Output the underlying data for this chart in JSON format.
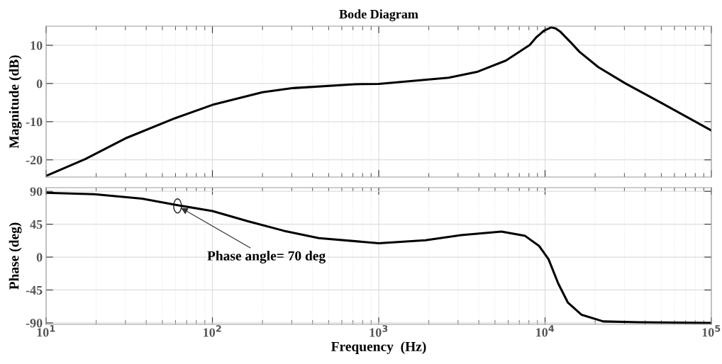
{
  "chart_data": [
    {
      "type": "line",
      "title": "Bode Diagram",
      "ylabel": "Magnitude (dB)",
      "log": "x",
      "grid": true,
      "tick_labels": "y",
      "marker": "none",
      "line_style": "solid",
      "xlim": [
        10,
        100000
      ],
      "xticks": [
        {
          "value": 10,
          "label": null
        },
        {
          "value": 100,
          "label": null
        },
        {
          "value": 1000,
          "label": null
        },
        {
          "value": 10000,
          "label": null
        },
        {
          "value": 100000,
          "label": null
        }
      ],
      "ylim": [
        -24.5,
        15
      ],
      "yticks": [
        -20,
        -10,
        0,
        10
      ],
      "series": [
        {
          "color": "#000000",
          "x": [
            10,
            17.2,
            29.9,
            59.6,
            100,
            200,
            306,
            718,
            1000,
            2630,
            3940,
            5820,
            8090,
            8910,
            9840,
            10900,
            11600,
            12400,
            14100,
            16100,
            20900,
            30200,
            50100,
            100000
          ],
          "values": [
            -24.2,
            -19.8,
            -14.4,
            -9.1,
            -5.6,
            -2.3,
            -1.2,
            -0.2,
            -0.1,
            1.5,
            3.1,
            6.0,
            10.1,
            12.2,
            13.8,
            14.7,
            14.4,
            13.5,
            11.0,
            8.3,
            4.3,
            0.1,
            -5.1,
            -12.3
          ]
        }
      ]
    },
    {
      "type": "line",
      "ylabel": "Phase (deg)",
      "xlabel": "Frequency  (Hz)",
      "log": "x",
      "grid": true,
      "marker": "none",
      "line_style": "solid",
      "xlim": [
        10,
        100000
      ],
      "xticks": [
        {
          "value": 10,
          "label": "10$^{1}$"
        },
        {
          "value": 100,
          "label": "10$^{2}$"
        },
        {
          "value": 1000,
          "label": "10$^{3}$"
        },
        {
          "value": 10000,
          "label": "10$^{4}$"
        },
        {
          "value": 100000,
          "label": "10$^{5}$"
        }
      ],
      "ylim": [
        -92,
        95
      ],
      "yticks": [
        -90,
        -45,
        0,
        45,
        90
      ],
      "annotations": [
        {
          "text": "Phase angle= 70 deg",
          "x": 61.7,
          "y": 70
        }
      ],
      "series": [
        {
          "color": "#000000",
          "x": [
            10,
            19.5,
            37.7,
            61.7,
            100,
            164,
            269,
            437,
            1000,
            1910,
            3130,
            5470,
            7590,
            9230,
            10500,
            12000,
            13700,
            16600,
            22400,
            36300,
            100000
          ],
          "values": [
            88,
            86,
            80,
            71,
            63,
            49,
            36,
            26,
            19,
            23,
            30,
            35,
            29,
            15,
            -3,
            -36,
            -62,
            -79,
            -88,
            -89,
            -90
          ]
        }
      ]
    }
  ]
}
